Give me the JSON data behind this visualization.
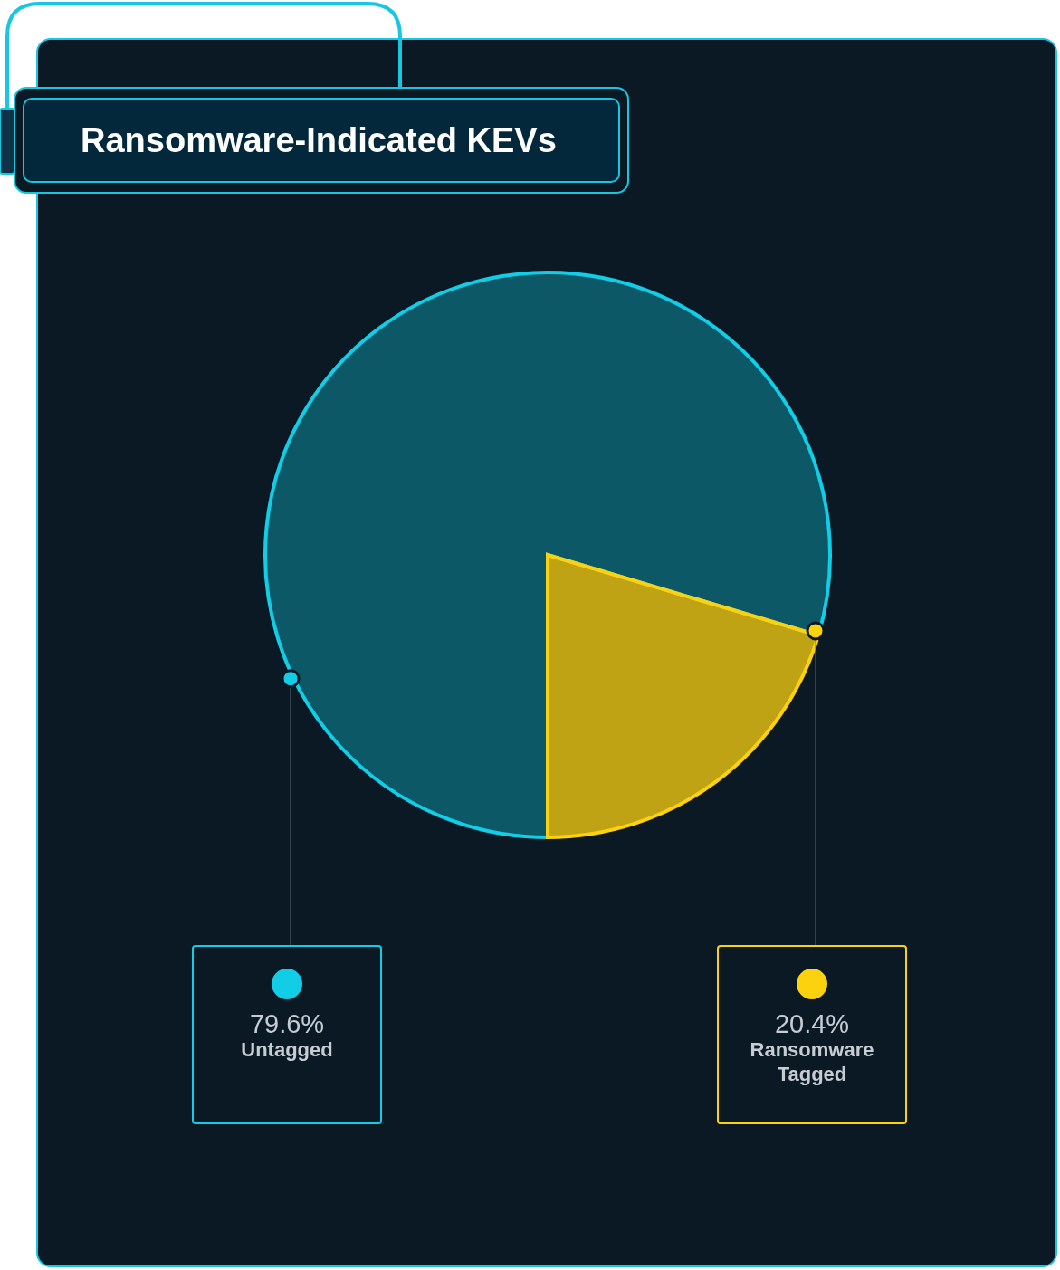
{
  "chart_data": {
    "type": "pie",
    "title": "Ransomware-Indicated KEVs",
    "categories": [
      "Untagged",
      "Ransomware Tagged"
    ],
    "values": [
      79.6,
      20.4
    ],
    "colors": [
      "#12cde6",
      "#fcd20f"
    ],
    "value_labels": [
      "79.6%",
      "20.4%"
    ]
  }
}
